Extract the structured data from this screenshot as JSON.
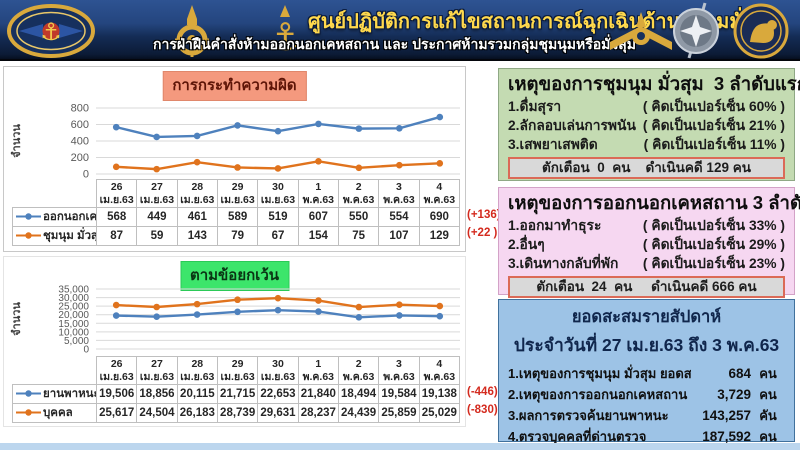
{
  "header": {
    "title": "ศูนย์ปฏิบัติการแก้ไขสถานการณ์ฉุกเฉินด้านความมั่นคง",
    "subtitle": "การฝ่าฝืนคำสั่งห้ามออกนอกเคหสถาน และ ประกาศห้ามรวมกลุ่มชุมนุมหรือมั่วสุม",
    "emblems_left": [
      "royal-thai-armed-forces-emblem",
      "royal-thai-army-emblem",
      "royal-thai-navy-emblem"
    ],
    "emblems_right": [
      "royal-thai-air-force-emblem",
      "royal-thai-police-emblem",
      "ministry-of-interior-emblem"
    ]
  },
  "chart_data": [
    {
      "type": "line",
      "title": "การกระทำความผิด",
      "ylabel": "จำนวน",
      "ylim": [
        0,
        800
      ],
      "yticks": [
        0,
        200,
        400,
        600,
        800
      ],
      "grid": true,
      "legend_position": "table-left",
      "categories": [
        [
          "26",
          "เม.ย.63"
        ],
        [
          "27",
          "เม.ย.63"
        ],
        [
          "28",
          "เม.ย.63"
        ],
        [
          "29",
          "เม.ย.63"
        ],
        [
          "30",
          "เม.ย.63"
        ],
        [
          "1 พ.ค.63"
        ],
        [
          "2 พ.ค.63"
        ],
        [
          "3 พ.ค.63"
        ],
        [
          "4 พ.ค.63"
        ]
      ],
      "series": [
        {
          "name": "ออกนอกเคหสถาน",
          "color": "#4E81BD",
          "values": [
            568,
            449,
            461,
            589,
            519,
            607,
            550,
            554,
            690
          ],
          "delta": "(+136)"
        },
        {
          "name": "ชุมนุม มั่วสุม",
          "color": "#E0731D",
          "values": [
            87,
            59,
            143,
            79,
            67,
            154,
            75,
            107,
            129
          ],
          "delta": "(+22 )"
        }
      ]
    },
    {
      "type": "line",
      "title": "ตามข้อยกเว้น",
      "ylabel": "จำนวน",
      "ylim": [
        0,
        35000
      ],
      "yticks": [
        0,
        5000,
        10000,
        15000,
        20000,
        25000,
        30000,
        35000
      ],
      "grid": true,
      "legend_position": "table-left",
      "categories": [
        [
          "26",
          "เม.ย.63"
        ],
        [
          "27",
          "เม.ย.63"
        ],
        [
          "28",
          "เม.ย.63"
        ],
        [
          "29",
          "เม.ย.63"
        ],
        [
          "30",
          "เม.ย.63"
        ],
        [
          "1 พ.ค.63"
        ],
        [
          "2 พ.ค.63"
        ],
        [
          "3 พ.ค.63"
        ],
        [
          "4 พ.ค.63"
        ]
      ],
      "series": [
        {
          "name": "ยานพาหนะ",
          "color": "#4E81BD",
          "values": [
            19506,
            18856,
            20115,
            21715,
            22653,
            21840,
            18494,
            19584,
            19138
          ],
          "delta": "(-446)"
        },
        {
          "name": "บุคคล",
          "color": "#E0731D",
          "values": [
            25617,
            24504,
            26183,
            28739,
            29631,
            28237,
            24439,
            25859,
            25029
          ],
          "delta": "(-830)"
        }
      ]
    }
  ],
  "panels": {
    "gathering": {
      "title": "เหตุของการชุมนุม มั่วสุม  3 ลำดับแรก",
      "items": [
        {
          "label": "1.ดื่มสุรา",
          "value": "( คิดเป็นเปอร์เซ็น 60% )"
        },
        {
          "label": "2.ลักลอบเล่นการพนัน",
          "value": "( คิดเป็นเปอร์เซ็น 21% )"
        },
        {
          "label": "3.เสพยาเสพติด",
          "value": "( คิดเป็นเปอร์เซ็น 11% )"
        }
      ],
      "footer": "ตักเตือน  0  คน    ดำเนินคดี 129 คน"
    },
    "curfew": {
      "title": "เหตุของการออกนอกเคหสถาน 3 ลำดับแรก",
      "items": [
        {
          "label": "1.ออกมาทำธุระ",
          "value": "( คิดเป็นเปอร์เซ็น 33% )"
        },
        {
          "label": "2.อื่นๆ",
          "value": "( คิดเป็นเปอร์เซ็น 29% )"
        },
        {
          "label": "3.เดินทางกลับที่พัก",
          "value": "( คิดเป็นเปอร์เซ็น 23% )"
        }
      ],
      "footer": "ตักเตือน  24  คน     ดำเนินคดี 666 คน"
    },
    "weekly": {
      "title_line1": "ยอดสะสมรายสัปดาห์",
      "title_line2": "ประจำวันที่ 27 เม.ย.63 ถึง 3 พ.ค.63",
      "rows": [
        {
          "label": "1.เหตุของการชุมนุม มั่วสุม ยอดสะสมรวม",
          "value": "684",
          "unit": "คน"
        },
        {
          "label": "2.เหตุของการออกนอกเคหสถาน ยอดสะสมรวม",
          "value": "3,729",
          "unit": "คน"
        },
        {
          "label": "3.ผลการตรวจค้นยานพาหนะ",
          "value": "143,257",
          "unit": "คัน"
        },
        {
          "label": "4.ตรวจบุคคลที่ด่านตรวจ",
          "value": "187,592",
          "unit": "คน"
        }
      ]
    }
  },
  "colors": {
    "series_blue": "#4E81BD",
    "series_orange": "#E0731D",
    "delta_red": "#D42A1E",
    "chart1_title_bg": "#F4997E",
    "chart2_title_bg": "#3CE56B",
    "panel_green_bg": "#C4DBB2",
    "panel_pink_bg": "#F6D7F1",
    "panel_blue_bg": "#9DC3E6",
    "footer_bar_bg": "#D9D9D9",
    "footer_bar_border": "#DB6A57"
  }
}
